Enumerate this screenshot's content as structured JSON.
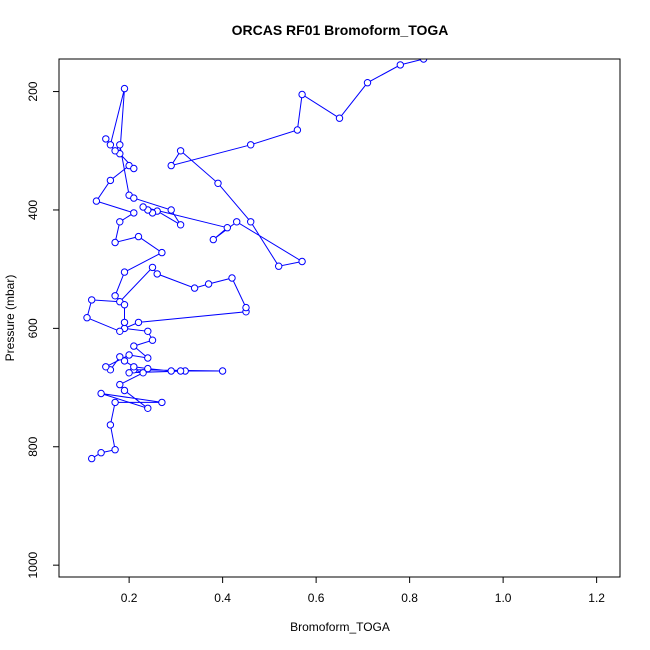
{
  "chart_data": {
    "type": "line",
    "title": "ORCAS RF01 Bromoform_TOGA",
    "xlabel": "Bromoform_TOGA",
    "ylabel": "Pressure (mbar)",
    "xlim": [
      0.05,
      1.25
    ],
    "ylim": [
      1020,
      145
    ],
    "y_reversed": true,
    "x_ticks": [
      0.2,
      0.4,
      0.6,
      0.8,
      1.0,
      1.2
    ],
    "x_tick_labels": [
      "0.2",
      "0.4",
      "0.6",
      "0.8",
      "1.0",
      "1.2"
    ],
    "y_ticks": [
      200,
      400,
      600,
      800,
      1000
    ],
    "y_tick_labels": [
      "200",
      "400",
      "600",
      "800",
      "1000"
    ],
    "grid": false,
    "series": [
      {
        "color": "#0000ff",
        "marker": "open-circle",
        "x": [
          0.12,
          0.14,
          0.17,
          0.16,
          0.17,
          0.27,
          0.14,
          0.24,
          0.19,
          0.18,
          0.23,
          0.21,
          0.4,
          0.32,
          0.2,
          0.31,
          0.29,
          0.24,
          0.21,
          0.19,
          0.18,
          0.16,
          0.15,
          0.2,
          0.24,
          0.21,
          0.25,
          0.24,
          0.19,
          0.22,
          0.45,
          0.45,
          0.42,
          0.37,
          0.34,
          0.26,
          0.25,
          0.18,
          0.12,
          0.11,
          0.18,
          0.19,
          0.19,
          0.17,
          0.19,
          0.27,
          0.22,
          0.17,
          0.18,
          0.21,
          0.13,
          0.16,
          0.2,
          0.21,
          0.18,
          0.19,
          0.16,
          0.15,
          0.17,
          0.18,
          0.2,
          0.21,
          0.29,
          0.31,
          0.26,
          0.25,
          0.24,
          0.23,
          0.41,
          0.38,
          0.43,
          0.57,
          0.52,
          0.46,
          0.39,
          0.31,
          0.29,
          0.46,
          0.56,
          0.57,
          0.65,
          0.71,
          0.78,
          0.83
        ],
        "y": [
          820,
          810,
          805,
          763,
          725,
          725,
          710,
          735,
          705,
          695,
          675,
          670,
          672,
          672,
          675,
          672,
          672,
          668,
          665,
          655,
          648,
          670,
          665,
          645,
          650,
          630,
          620,
          605,
          600,
          590,
          572,
          565,
          515,
          525,
          532,
          508,
          497,
          555,
          552,
          582,
          605,
          590,
          560,
          545,
          505,
          472,
          445,
          455,
          420,
          405,
          385,
          350,
          325,
          330,
          305,
          195,
          290,
          280,
          300,
          290,
          375,
          380,
          400,
          425,
          402,
          405,
          400,
          395,
          430,
          450,
          420,
          487,
          495,
          420,
          355,
          300,
          325,
          290,
          265,
          205,
          245,
          185,
          155,
          145
        ]
      }
    ]
  }
}
